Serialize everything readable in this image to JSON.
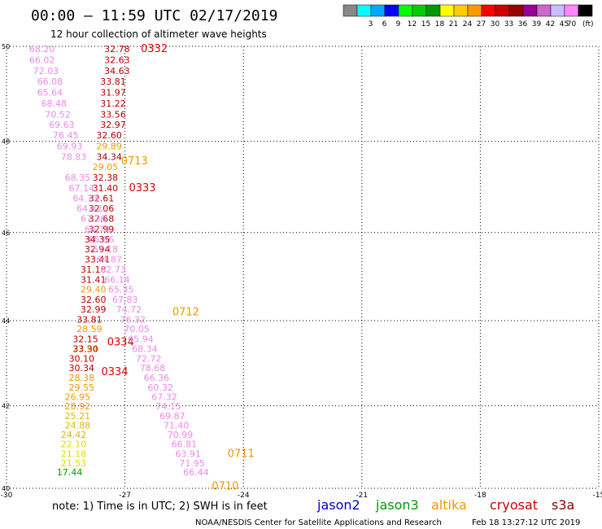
{
  "header": {
    "title": "00:00 – 11:59 UTC 02/17/2019",
    "subtitle": "12 hour collection of altimeter wave heights"
  },
  "colorbar": {
    "unit": "(ft)",
    "segments": [
      {
        "color": "#888888",
        "label": ""
      },
      {
        "color": "#00ffff",
        "label": "3"
      },
      {
        "color": "#00aaff",
        "label": "6"
      },
      {
        "color": "#0000ff",
        "label": "9"
      },
      {
        "color": "#00ff00",
        "label": "12"
      },
      {
        "color": "#00cc00",
        "label": "15"
      },
      {
        "color": "#009900",
        "label": "18"
      },
      {
        "color": "#ffff00",
        "label": "21"
      },
      {
        "color": "#ffcc00",
        "label": "24"
      },
      {
        "color": "#ff9900",
        "label": "27"
      },
      {
        "color": "#ff0000",
        "label": "30"
      },
      {
        "color": "#cc0000",
        "label": "33"
      },
      {
        "color": "#990000",
        "label": "36"
      },
      {
        "color": "#990099",
        "label": "39"
      },
      {
        "color": "#cc66cc",
        "label": "42"
      },
      {
        "color": "#ccbbff",
        "label": "45"
      },
      {
        "color": "#ff88ff",
        "label": "70"
      },
      {
        "color": "#000000",
        "label": ""
      }
    ]
  },
  "axes": {
    "x_ticks": [
      "-30",
      "-27",
      "-24",
      "-21",
      "-18",
      "-15"
    ],
    "y_ticks": [
      "50",
      "48",
      "46",
      "44",
      "42",
      "40"
    ],
    "xlim": [
      -30,
      -15
    ],
    "ylim": [
      40,
      50
    ]
  },
  "tracks": [
    {
      "id": "cryosat-0332",
      "satellite": "cryosat",
      "time_label": "0332",
      "time_color": "#dd0000",
      "label_pos": {
        "lon": -26.6,
        "lat": 49.95
      },
      "points": [
        {
          "v": "32.78",
          "c": "#bb0000",
          "lon": -27.2,
          "lat": 49.95
        },
        {
          "v": "32.63",
          "c": "#bb0000",
          "lon": -27.2,
          "lat": 49.72
        },
        {
          "v": "34.63",
          "c": "#bb0000",
          "lon": -27.2,
          "lat": 49.49
        },
        {
          "v": "33.81",
          "c": "#bb0000",
          "lon": -27.3,
          "lat": 49.27
        },
        {
          "v": "31.97",
          "c": "#bb0000",
          "lon": -27.3,
          "lat": 49.04
        },
        {
          "v": "31.22",
          "c": "#bb0000",
          "lon": -27.3,
          "lat": 48.81
        },
        {
          "v": "33.56",
          "c": "#bb0000",
          "lon": -27.3,
          "lat": 48.58
        },
        {
          "v": "32.97",
          "c": "#bb0000",
          "lon": -27.3,
          "lat": 48.36
        },
        {
          "v": "32.60",
          "c": "#bb0000",
          "lon": -27.4,
          "lat": 48.13
        },
        {
          "v": "29.89",
          "c": "#ee9900",
          "lon": -27.4,
          "lat": 47.9
        },
        {
          "v": "34.34",
          "c": "#990000",
          "lon": -27.4,
          "lat": 47.67
        },
        {
          "v": "29.05",
          "c": "#ee9900",
          "lon": -27.5,
          "lat": 47.45
        }
      ]
    },
    {
      "id": "altika-0713",
      "satellite": "altika",
      "time_label": "0713",
      "time_color": "#ee9900",
      "label_pos": {
        "lon": -27.1,
        "lat": 47.57
      },
      "points": []
    },
    {
      "id": "cryosat-0333",
      "satellite": "cryosat",
      "time_label": "0333",
      "time_color": "#dd0000",
      "label_pos": {
        "lon": -26.9,
        "lat": 46.99
      },
      "points": [
        {
          "v": "32.38",
          "c": "#bb0000",
          "lon": -27.5,
          "lat": 47.22
        },
        {
          "v": "31.40",
          "c": "#bb0000",
          "lon": -27.5,
          "lat": 46.99
        },
        {
          "v": "32.61",
          "c": "#bb0000",
          "lon": -27.6,
          "lat": 46.76
        },
        {
          "v": "32.06",
          "c": "#bb0000",
          "lon": -27.6,
          "lat": 46.54
        },
        {
          "v": "32.68",
          "c": "#bb0000",
          "lon": -27.6,
          "lat": 46.31
        },
        {
          "v": "32.99",
          "c": "#bb0000",
          "lon": -27.6,
          "lat": 46.08
        },
        {
          "v": "34.35",
          "c": "#990000",
          "lon": -27.7,
          "lat": 45.85
        },
        {
          "v": "32.94",
          "c": "#bb0000",
          "lon": -27.7,
          "lat": 45.63
        },
        {
          "v": "33.41",
          "c": "#bb0000",
          "lon": -27.7,
          "lat": 45.4
        },
        {
          "v": "31.18",
          "c": "#bb0000",
          "lon": -27.8,
          "lat": 45.17
        },
        {
          "v": "31.41",
          "c": "#bb0000",
          "lon": -27.8,
          "lat": 44.94
        },
        {
          "v": "29.40",
          "c": "#ee9900",
          "lon": -27.8,
          "lat": 44.72
        },
        {
          "v": "32.60",
          "c": "#bb0000",
          "lon": -27.8,
          "lat": 44.49
        },
        {
          "v": "32.99",
          "c": "#bb0000",
          "lon": -27.8,
          "lat": 44.26
        },
        {
          "v": "33.81",
          "c": "#bb0000",
          "lon": -27.9,
          "lat": 44.03
        }
      ]
    },
    {
      "id": "altika-0712",
      "satellite": "altika",
      "time_label": "0712",
      "time_color": "#ee9900",
      "label_pos": {
        "lon": -25.8,
        "lat": 44.2
      },
      "points": [
        {
          "v": "28.59",
          "c": "#ee9900",
          "lon": -27.9,
          "lat": 43.81
        },
        {
          "v": "27.94",
          "c": "#ee9900",
          "lon": -28.0,
          "lat": 43.35
        },
        {
          "v": "28.38",
          "c": "#ee9900",
          "lon": -28.1,
          "lat": 42.67
        },
        {
          "v": "29.55",
          "c": "#ee9900",
          "lon": -28.1,
          "lat": 42.44
        },
        {
          "v": "26.95",
          "c": "#ee9900",
          "lon": -28.2,
          "lat": 42.22
        },
        {
          "v": "28.92",
          "c": "#ee9900",
          "lon": -28.2,
          "lat": 41.99
        },
        {
          "v": "25.21",
          "c": "#ddbb00",
          "lon": -28.2,
          "lat": 41.76
        },
        {
          "v": "24.88",
          "c": "#ddbb00",
          "lon": -28.2,
          "lat": 41.53
        },
        {
          "v": "24.42",
          "c": "#ddbb00",
          "lon": -28.3,
          "lat": 41.31
        },
        {
          "v": "22.10",
          "c": "#dddd00",
          "lon": -28.3,
          "lat": 41.08
        },
        {
          "v": "21.18",
          "c": "#dddd00",
          "lon": -28.3,
          "lat": 40.85
        },
        {
          "v": "21.53",
          "c": "#dddd00",
          "lon": -28.3,
          "lat": 40.62
        },
        {
          "v": "17.44",
          "c": "#009900",
          "lon": -28.4,
          "lat": 40.4
        }
      ]
    },
    {
      "id": "cryosat-0334a",
      "satellite": "cryosat",
      "time_label": "0334",
      "time_color": "#dd0000",
      "label_pos": {
        "lon": -27.45,
        "lat": 43.5
      },
      "points": [
        {
          "v": "32.15",
          "c": "#bb0000",
          "lon": -28.0,
          "lat": 43.58
        },
        {
          "v": "33.30",
          "c": "#bb0000",
          "lon": -28.0,
          "lat": 43.35
        }
      ]
    },
    {
      "id": "cryosat-0334b",
      "satellite": "cryosat",
      "time_label": "0334",
      "time_color": "#dd0000",
      "label_pos": {
        "lon": -27.6,
        "lat": 42.8
      },
      "points": [
        {
          "v": "30.10",
          "c": "#bb0000",
          "lon": -28.1,
          "lat": 43.12
        },
        {
          "v": "30.34",
          "c": "#bb0000",
          "lon": -28.1,
          "lat": 42.9
        }
      ]
    },
    {
      "id": "s3a-0710",
      "satellite": "s3a",
      "time_label": "0710",
      "time_color": "#ee9900",
      "label_pos": {
        "lon": -24.8,
        "lat": 40.05
      },
      "points": [
        {
          "v": "68.20",
          "c": "#ee88ee",
          "lon": -29.1,
          "lat": 49.95
        },
        {
          "v": "66.02",
          "c": "#ee88ee",
          "lon": -29.1,
          "lat": 49.72
        },
        {
          "v": "72.03",
          "c": "#ee88ee",
          "lon": -29.0,
          "lat": 49.49
        },
        {
          "v": "66.08",
          "c": "#ee88ee",
          "lon": -28.9,
          "lat": 49.27
        },
        {
          "v": "65.64",
          "c": "#ee88ee",
          "lon": -28.9,
          "lat": 49.04
        },
        {
          "v": "68.48",
          "c": "#ee88ee",
          "lon": -28.8,
          "lat": 48.81
        },
        {
          "v": "70.52",
          "c": "#ee88ee",
          "lon": -28.7,
          "lat": 48.58
        },
        {
          "v": "69.63",
          "c": "#ee88ee",
          "lon": -28.6,
          "lat": 48.36
        },
        {
          "v": "76.45",
          "c": "#ee88ee",
          "lon": -28.5,
          "lat": 48.13
        },
        {
          "v": "69.93",
          "c": "#ee88ee",
          "lon": -28.4,
          "lat": 47.9
        },
        {
          "v": "78.83",
          "c": "#ee88ee",
          "lon": -28.3,
          "lat": 47.67
        },
        {
          "v": "68.35",
          "c": "#ee88ee",
          "lon": -28.2,
          "lat": 47.22
        },
        {
          "v": "67.14",
          "c": "#ee88ee",
          "lon": -28.1,
          "lat": 46.99
        },
        {
          "v": "64.73",
          "c": "#ee88ee",
          "lon": -28.0,
          "lat": 46.76
        },
        {
          "v": "64.82",
          "c": "#ee88ee",
          "lon": -27.9,
          "lat": 46.54
        },
        {
          "v": "67.26",
          "c": "#ee88ee",
          "lon": -27.8,
          "lat": 46.31
        },
        {
          "v": "66.79",
          "c": "#ee88ee",
          "lon": -27.7,
          "lat": 46.08
        },
        {
          "v": "65.96",
          "c": "#ee88ee",
          "lon": -27.6,
          "lat": 45.85
        },
        {
          "v": "67.18",
          "c": "#ee88ee",
          "lon": -27.5,
          "lat": 45.63
        },
        {
          "v": "64.87",
          "c": "#ee88ee",
          "lon": -27.4,
          "lat": 45.4
        },
        {
          "v": "62.73",
          "c": "#ee88ee",
          "lon": -27.3,
          "lat": 45.17
        },
        {
          "v": "66.14",
          "c": "#ee88ee",
          "lon": -27.2,
          "lat": 44.94
        },
        {
          "v": "65.35",
          "c": "#ee88ee",
          "lon": -27.1,
          "lat": 44.72
        },
        {
          "v": "67.83",
          "c": "#ee88ee",
          "lon": -27.0,
          "lat": 44.49
        },
        {
          "v": "74.72",
          "c": "#ee88ee",
          "lon": -26.9,
          "lat": 44.26
        },
        {
          "v": "76.32",
          "c": "#ee88ee",
          "lon": -26.8,
          "lat": 44.03
        },
        {
          "v": "70.05",
          "c": "#ee88ee",
          "lon": -26.7,
          "lat": 43.81
        },
        {
          "v": "65.94",
          "c": "#ee88ee",
          "lon": -26.6,
          "lat": 43.58
        },
        {
          "v": "68.34",
          "c": "#ee88ee",
          "lon": -26.5,
          "lat": 43.35
        },
        {
          "v": "72.72",
          "c": "#ee88ee",
          "lon": -26.4,
          "lat": 43.12
        },
        {
          "v": "78.68",
          "c": "#ee88ee",
          "lon": -26.3,
          "lat": 42.9
        },
        {
          "v": "66.36",
          "c": "#ee88ee",
          "lon": -26.2,
          "lat": 42.67
        },
        {
          "v": "60.32",
          "c": "#ee88ee",
          "lon": -26.1,
          "lat": 42.44
        },
        {
          "v": "67.32",
          "c": "#ee88ee",
          "lon": -26.0,
          "lat": 42.22
        },
        {
          "v": "74.15",
          "c": "#ee88ee",
          "lon": -25.9,
          "lat": 41.99
        },
        {
          "v": "69.87",
          "c": "#ee88ee",
          "lon": -25.8,
          "lat": 41.76
        },
        {
          "v": "71.40",
          "c": "#ee88ee",
          "lon": -25.7,
          "lat": 41.53
        },
        {
          "v": "70.99",
          "c": "#ee88ee",
          "lon": -25.6,
          "lat": 41.31
        },
        {
          "v": "66.81",
          "c": "#ee88ee",
          "lon": -25.5,
          "lat": 41.08
        },
        {
          "v": "63.91",
          "c": "#ee88ee",
          "lon": -25.4,
          "lat": 40.85
        },
        {
          "v": "71.95",
          "c": "#ee88ee",
          "lon": -25.3,
          "lat": 40.62
        },
        {
          "v": "66.44",
          "c": "#ee88ee",
          "lon": -25.2,
          "lat": 40.4
        }
      ]
    },
    {
      "id": "altika-0711",
      "satellite": "altika",
      "time_label": "0711",
      "time_color": "#ee9900",
      "label_pos": {
        "lon": -24.4,
        "lat": 40.85
      },
      "points": []
    }
  ],
  "footer": {
    "note": "note: 1) Time is in UTC; 2) SWH is in feet",
    "satellites": [
      {
        "name": "jason2",
        "color": "#0000cc"
      },
      {
        "name": "jason3",
        "color": "#009900"
      },
      {
        "name": "altika",
        "color": "#ee9900"
      },
      {
        "name": "cryosat",
        "color": "#cc0000"
      },
      {
        "name": "s3a",
        "color": "#880000"
      }
    ],
    "credit": "NOAA/NESDIS Center for Satellite Applications and Research",
    "timestamp": "Feb 18 13:27:12 UTC 2019"
  }
}
